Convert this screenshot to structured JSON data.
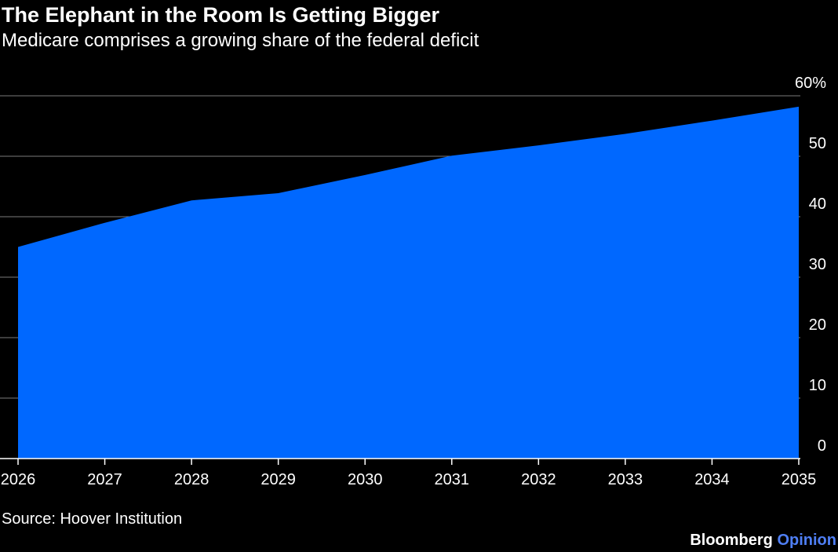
{
  "chart_data": {
    "type": "area",
    "title": "The Elephant in the Room Is Getting Bigger",
    "subtitle": "Medicare comprises a growing share of the federal deficit",
    "categories": [
      "2026",
      "2027",
      "2028",
      "2029",
      "2030",
      "2031",
      "2032",
      "2033",
      "2034",
      "2035"
    ],
    "values": [
      35,
      39,
      42.7,
      43.9,
      46.9,
      50.1,
      51.8,
      53.7,
      55.9,
      58.2
    ],
    "ylim": [
      0,
      60
    ],
    "yticks": [
      "0",
      "10",
      "20",
      "30",
      "40",
      "50",
      "60%"
    ],
    "ytick_values": [
      0,
      10,
      20,
      30,
      40,
      50,
      60
    ],
    "y_axis_side": "right",
    "grid": true,
    "color": "#0068ff",
    "source": "Source: Hoover Institution"
  },
  "branding": {
    "name": "Bloomberg",
    "section": "Opinion",
    "section_color": "#4f7ff5"
  }
}
